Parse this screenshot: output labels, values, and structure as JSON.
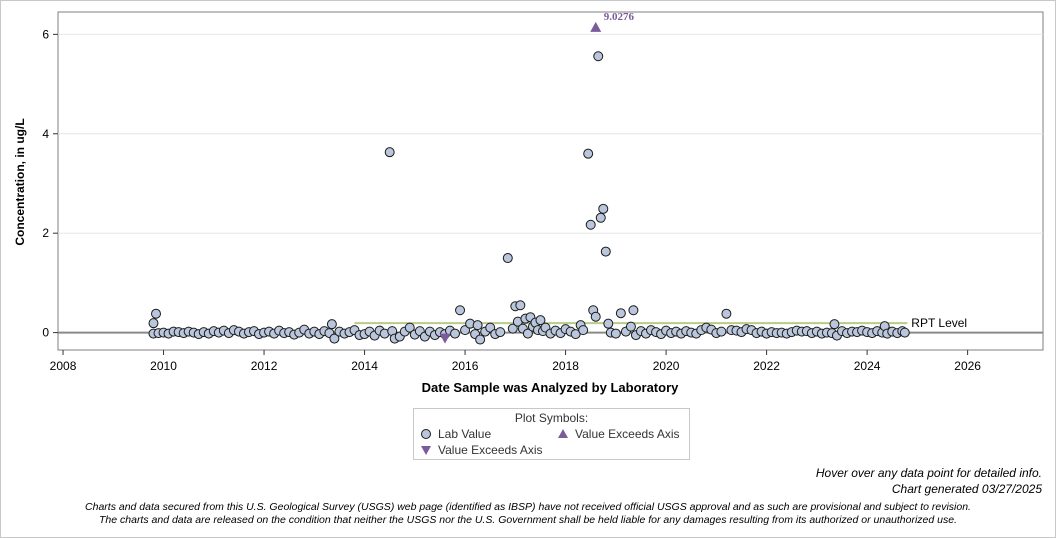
{
  "chart_data": {
    "type": "scatter",
    "xlabel": "Date Sample was Analyzed by Laboratory",
    "ylabel": "Concentration, in ug/L",
    "xlim": [
      2007.9,
      2027.5
    ],
    "ylim": [
      -0.35,
      6.45
    ],
    "x_ticks": [
      2008,
      2010,
      2012,
      2014,
      2016,
      2018,
      2020,
      2022,
      2024,
      2026
    ],
    "y_ticks": [
      0,
      2,
      4,
      6
    ],
    "grid": "horizontal",
    "zero_line": 0,
    "rpt_level": {
      "label": "RPT Level",
      "value": 0.19,
      "x_start": 2013.8,
      "x_end": 2024.8,
      "color": "#b8cc8a"
    },
    "annotations": [
      {
        "text": "9.0276",
        "x": 2018.6,
        "y": 6.13
      }
    ],
    "series": [
      {
        "name": "Lab Value",
        "marker": "circle",
        "fill": "#b9c6dc",
        "stroke": "#1a1a1a",
        "points": [
          [
            2009.8,
            0.19
          ],
          [
            2009.85,
            0.38
          ],
          [
            2009.8,
            -0.02
          ],
          [
            2009.9,
            -0.01
          ],
          [
            2010.0,
            0.0
          ],
          [
            2010.1,
            -0.02
          ],
          [
            2010.2,
            0.02
          ],
          [
            2010.3,
            0.01
          ],
          [
            2010.4,
            -0.01
          ],
          [
            2010.5,
            0.02
          ],
          [
            2010.6,
            0.0
          ],
          [
            2010.7,
            -0.03
          ],
          [
            2010.8,
            0.01
          ],
          [
            2010.9,
            -0.02
          ],
          [
            2011.0,
            0.03
          ],
          [
            2011.1,
            0.0
          ],
          [
            2011.2,
            0.04
          ],
          [
            2011.3,
            -0.01
          ],
          [
            2011.4,
            0.05
          ],
          [
            2011.5,
            0.02
          ],
          [
            2011.6,
            -0.02
          ],
          [
            2011.7,
            0.01
          ],
          [
            2011.8,
            0.03
          ],
          [
            2011.9,
            -0.03
          ],
          [
            2012.0,
            0.0
          ],
          [
            2012.1,
            0.02
          ],
          [
            2012.2,
            -0.02
          ],
          [
            2012.3,
            0.04
          ],
          [
            2012.4,
            -0.01
          ],
          [
            2012.5,
            0.01
          ],
          [
            2012.6,
            -0.04
          ],
          [
            2012.7,
            0.0
          ],
          [
            2012.8,
            0.06
          ],
          [
            2012.9,
            -0.02
          ],
          [
            2013.0,
            0.02
          ],
          [
            2013.1,
            -0.03
          ],
          [
            2013.2,
            0.03
          ],
          [
            2013.3,
            -0.01
          ],
          [
            2013.35,
            0.17
          ],
          [
            2013.4,
            -0.12
          ],
          [
            2013.5,
            0.02
          ],
          [
            2013.6,
            -0.02
          ],
          [
            2013.7,
            0.01
          ],
          [
            2013.8,
            0.05
          ],
          [
            2013.9,
            -0.05
          ],
          [
            2014.0,
            -0.03
          ],
          [
            2014.1,
            0.02
          ],
          [
            2014.2,
            -0.06
          ],
          [
            2014.3,
            0.04
          ],
          [
            2014.4,
            -0.02
          ],
          [
            2014.5,
            3.63
          ],
          [
            2014.55,
            0.03
          ],
          [
            2014.6,
            -0.12
          ],
          [
            2014.7,
            -0.08
          ],
          [
            2014.8,
            0.02
          ],
          [
            2014.9,
            0.1
          ],
          [
            2015.0,
            -0.04
          ],
          [
            2015.1,
            0.03
          ],
          [
            2015.2,
            -0.08
          ],
          [
            2015.3,
            0.02
          ],
          [
            2015.4,
            -0.05
          ],
          [
            2015.5,
            0.01
          ],
          [
            2015.6,
            -0.03
          ],
          [
            2015.7,
            0.04
          ],
          [
            2015.8,
            -0.02
          ],
          [
            2015.9,
            0.45
          ],
          [
            2016.0,
            0.05
          ],
          [
            2016.1,
            0.18
          ],
          [
            2016.2,
            -0.03
          ],
          [
            2016.25,
            0.15
          ],
          [
            2016.3,
            -0.14
          ],
          [
            2016.4,
            0.02
          ],
          [
            2016.5,
            0.1
          ],
          [
            2016.6,
            -0.03
          ],
          [
            2016.7,
            0.01
          ],
          [
            2016.85,
            1.5
          ],
          [
            2016.95,
            0.08
          ],
          [
            2017.0,
            0.53
          ],
          [
            2017.05,
            0.22
          ],
          [
            2017.1,
            0.55
          ],
          [
            2017.15,
            0.08
          ],
          [
            2017.2,
            0.28
          ],
          [
            2017.25,
            -0.02
          ],
          [
            2017.3,
            0.31
          ],
          [
            2017.35,
            0.12
          ],
          [
            2017.4,
            0.2
          ],
          [
            2017.45,
            0.05
          ],
          [
            2017.5,
            0.25
          ],
          [
            2017.55,
            0.03
          ],
          [
            2017.6,
            0.1
          ],
          [
            2017.7,
            -0.02
          ],
          [
            2017.8,
            0.04
          ],
          [
            2017.9,
            -0.01
          ],
          [
            2018.0,
            0.07
          ],
          [
            2018.1,
            0.02
          ],
          [
            2018.2,
            -0.03
          ],
          [
            2018.3,
            0.15
          ],
          [
            2018.35,
            0.05
          ],
          [
            2018.45,
            3.6
          ],
          [
            2018.5,
            2.17
          ],
          [
            2018.55,
            0.45
          ],
          [
            2018.6,
            0.32
          ],
          [
            2018.65,
            5.56
          ],
          [
            2018.7,
            2.31
          ],
          [
            2018.75,
            2.49
          ],
          [
            2018.8,
            1.63
          ],
          [
            2018.85,
            0.18
          ],
          [
            2018.9,
            0.0
          ],
          [
            2019.0,
            -0.02
          ],
          [
            2019.1,
            0.39
          ],
          [
            2019.2,
            0.02
          ],
          [
            2019.3,
            0.12
          ],
          [
            2019.35,
            0.45
          ],
          [
            2019.4,
            -0.05
          ],
          [
            2019.5,
            0.03
          ],
          [
            2019.6,
            -0.02
          ],
          [
            2019.7,
            0.05
          ],
          [
            2019.8,
            0.01
          ],
          [
            2019.9,
            -0.03
          ],
          [
            2020.0,
            0.04
          ],
          [
            2020.1,
            -0.01
          ],
          [
            2020.2,
            0.02
          ],
          [
            2020.3,
            -0.02
          ],
          [
            2020.4,
            0.03
          ],
          [
            2020.5,
            0.0
          ],
          [
            2020.6,
            -0.02
          ],
          [
            2020.7,
            0.05
          ],
          [
            2020.8,
            0.1
          ],
          [
            2020.9,
            0.06
          ],
          [
            2021.0,
            -0.01
          ],
          [
            2021.1,
            0.02
          ],
          [
            2021.2,
            0.38
          ],
          [
            2021.3,
            0.05
          ],
          [
            2021.4,
            0.04
          ],
          [
            2021.5,
            0.01
          ],
          [
            2021.6,
            0.07
          ],
          [
            2021.7,
            0.05
          ],
          [
            2021.8,
            -0.01
          ],
          [
            2021.9,
            0.02
          ],
          [
            2022.0,
            -0.02
          ],
          [
            2022.1,
            0.01
          ],
          [
            2022.2,
            -0.01
          ],
          [
            2022.3,
            0.0
          ],
          [
            2022.4,
            -0.02
          ],
          [
            2022.5,
            0.01
          ],
          [
            2022.6,
            0.04
          ],
          [
            2022.7,
            0.02
          ],
          [
            2022.8,
            0.03
          ],
          [
            2022.9,
            -0.01
          ],
          [
            2023.0,
            0.02
          ],
          [
            2023.1,
            -0.02
          ],
          [
            2023.2,
            0.0
          ],
          [
            2023.3,
            -0.01
          ],
          [
            2023.35,
            0.17
          ],
          [
            2023.4,
            -0.06
          ],
          [
            2023.5,
            0.03
          ],
          [
            2023.6,
            -0.01
          ],
          [
            2023.7,
            0.02
          ],
          [
            2023.8,
            0.01
          ],
          [
            2023.9,
            0.04
          ],
          [
            2024.0,
            0.01
          ],
          [
            2024.1,
            -0.01
          ],
          [
            2024.2,
            0.03
          ],
          [
            2024.3,
            0.0
          ],
          [
            2024.35,
            0.13
          ],
          [
            2024.4,
            -0.02
          ],
          [
            2024.5,
            0.02
          ],
          [
            2024.6,
            -0.01
          ],
          [
            2024.7,
            0.03
          ],
          [
            2024.75,
            0.0
          ]
        ]
      },
      {
        "name": "Value Exceeds Axis",
        "marker": "triangle-up",
        "fill": "#7b5b9b",
        "points": [
          [
            2018.6,
            6.13
          ]
        ]
      },
      {
        "name": "Value Exceeds Axis",
        "marker": "triangle-down",
        "fill": "#7b5b9b",
        "points": [
          [
            2015.6,
            -0.1
          ]
        ]
      }
    ]
  },
  "legend": {
    "title": "Plot Symbols:",
    "items": [
      "Lab Value",
      "Value Exceeds Axis",
      "Value Exceeds Axis"
    ]
  },
  "notes": {
    "hover": "Hover over any data point for detailed info.",
    "generated": "Chart generated 03/27/2025",
    "disclaimer_line1": "Charts and data secured from this U.S. Geological Survey (USGS) web page (identified as IBSP) have not received official USGS approval and as such are provisional and subject to revision.",
    "disclaimer_line2": "The charts and data are released on the condition that neither the USGS nor the U.S. Government shall be held liable for any damages resulting from its authorized or unauthorized use."
  }
}
